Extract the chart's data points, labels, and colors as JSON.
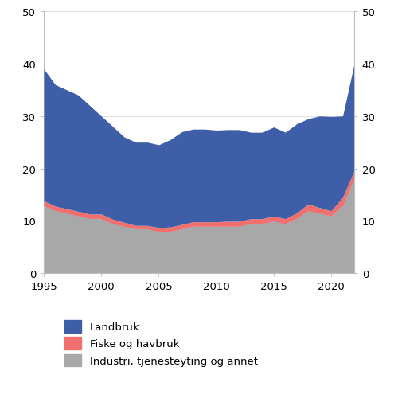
{
  "years": [
    1995,
    1996,
    1997,
    1998,
    1999,
    2000,
    2001,
    2002,
    2003,
    2004,
    2005,
    2006,
    2007,
    2008,
    2009,
    2010,
    2011,
    2012,
    2013,
    2014,
    2015,
    2016,
    2017,
    2018,
    2019,
    2020,
    2021,
    2022
  ],
  "industri": [
    13.0,
    12.0,
    11.5,
    11.0,
    10.5,
    10.5,
    9.5,
    9.0,
    8.5,
    8.5,
    8.0,
    8.0,
    8.5,
    9.0,
    9.0,
    9.0,
    9.0,
    9.0,
    9.5,
    9.5,
    10.0,
    9.5,
    10.5,
    12.0,
    11.5,
    11.0,
    13.0,
    18.0
  ],
  "fiske": [
    0.8,
    0.8,
    0.8,
    0.8,
    0.8,
    0.8,
    0.8,
    0.7,
    0.6,
    0.6,
    0.7,
    0.8,
    0.8,
    0.8,
    0.8,
    0.8,
    0.9,
    0.9,
    0.9,
    0.9,
    0.9,
    0.9,
    1.0,
    1.2,
    1.0,
    0.9,
    1.5,
    1.5
  ],
  "landbruk": [
    25.2,
    23.2,
    22.7,
    22.2,
    20.7,
    18.7,
    17.7,
    16.3,
    15.9,
    15.9,
    15.8,
    16.7,
    17.7,
    17.7,
    17.7,
    17.5,
    17.5,
    17.5,
    16.5,
    16.5,
    17.0,
    16.5,
    17.0,
    16.3,
    17.5,
    18.0,
    15.5,
    20.5
  ],
  "color_landbruk": "#3f5ea8",
  "color_fiske": "#f07070",
  "color_industri": "#a8a8a8",
  "ylim": [
    0,
    50
  ],
  "yticks": [
    0,
    10,
    20,
    30,
    40,
    50
  ],
  "xticks": [
    1995,
    2000,
    2005,
    2010,
    2015,
    2020
  ],
  "legend_labels": [
    "Landbruk",
    "Fiske og havbruk",
    "Industri, tjenesteyting og annet"
  ],
  "spine_color": "#c0c0c0",
  "grid_color": "#e0e0e0"
}
